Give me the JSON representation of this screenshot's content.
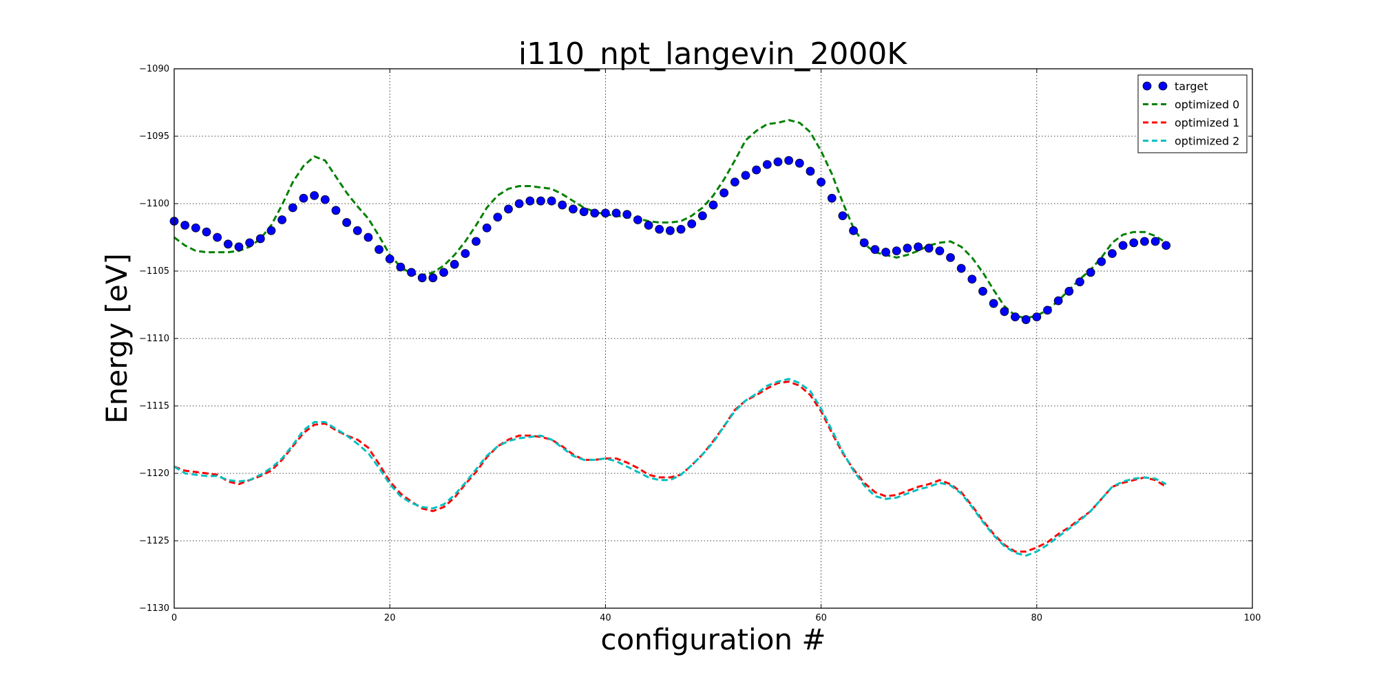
{
  "chart_data": {
    "type": "line",
    "title": "i110_npt_langevin_2000K",
    "xlabel": "configuration #",
    "ylabel": "Energy [eV]",
    "xlim": [
      0,
      100
    ],
    "ylim": [
      -1130,
      -1090
    ],
    "xticks": [
      0,
      20,
      40,
      60,
      80,
      100
    ],
    "yticks": [
      -1130,
      -1125,
      -1120,
      -1115,
      -1110,
      -1105,
      -1100,
      -1095,
      -1090
    ],
    "grid": true,
    "legend_position": "top-right",
    "series": [
      {
        "name": "target",
        "style": "markers",
        "color": "#0000ff",
        "values": [
          -1101.3,
          -1101.6,
          -1101.8,
          -1102.1,
          -1102.5,
          -1103.0,
          -1103.2,
          -1102.9,
          -1102.6,
          -1102.0,
          -1101.2,
          -1100.3,
          -1099.6,
          -1099.4,
          -1099.7,
          -1100.5,
          -1101.4,
          -1102.0,
          -1102.5,
          -1103.4,
          -1104.1,
          -1104.7,
          -1105.1,
          -1105.5,
          -1105.5,
          -1105.1,
          -1104.5,
          -1103.7,
          -1102.8,
          -1101.8,
          -1101.0,
          -1100.4,
          -1100.0,
          -1099.8,
          -1099.8,
          -1099.8,
          -1100.1,
          -1100.4,
          -1100.6,
          -1100.7,
          -1100.7,
          -1100.7,
          -1100.8,
          -1101.2,
          -1101.6,
          -1101.9,
          -1102.0,
          -1101.9,
          -1101.5,
          -1100.9,
          -1100.1,
          -1099.2,
          -1098.4,
          -1097.9,
          -1097.5,
          -1097.1,
          -1096.9,
          -1096.8,
          -1097.0,
          -1097.6,
          -1098.4,
          -1099.6,
          -1100.9,
          -1102.0,
          -1102.9,
          -1103.4,
          -1103.6,
          -1103.5,
          -1103.3,
          -1103.2,
          -1103.3,
          -1103.5,
          -1104.0,
          -1104.8,
          -1105.6,
          -1106.5,
          -1107.4,
          -1108.0,
          -1108.4,
          -1108.6,
          -1108.4,
          -1107.9,
          -1107.2,
          -1106.5,
          -1105.8,
          -1105.1,
          -1104.3,
          -1103.7,
          -1103.1,
          -1102.9,
          -1102.8,
          -1102.8,
          -1103.1
        ]
      },
      {
        "name": "optimized 0",
        "style": "dashed",
        "color": "#008000",
        "values": [
          -1102.5,
          -1103.1,
          -1103.5,
          -1103.6,
          -1103.6,
          -1103.6,
          -1103.5,
          -1103.2,
          -1102.6,
          -1101.6,
          -1100.1,
          -1098.4,
          -1097.2,
          -1096.5,
          -1096.8,
          -1098.0,
          -1099.2,
          -1100.2,
          -1101.1,
          -1102.4,
          -1103.8,
          -1104.7,
          -1105.2,
          -1105.3,
          -1105.1,
          -1104.6,
          -1103.8,
          -1102.8,
          -1101.6,
          -1100.3,
          -1099.4,
          -1098.9,
          -1098.7,
          -1098.7,
          -1098.8,
          -1098.9,
          -1099.3,
          -1099.8,
          -1100.3,
          -1100.6,
          -1100.8,
          -1100.9,
          -1101.0,
          -1101.1,
          -1101.3,
          -1101.4,
          -1101.4,
          -1101.3,
          -1100.9,
          -1100.3,
          -1099.4,
          -1098.2,
          -1096.8,
          -1095.3,
          -1094.6,
          -1094.1,
          -1094.0,
          -1093.8,
          -1094.0,
          -1094.7,
          -1096.1,
          -1097.8,
          -1099.9,
          -1101.8,
          -1103.0,
          -1103.6,
          -1103.8,
          -1104.0,
          -1103.8,
          -1103.5,
          -1103.1,
          -1102.9,
          -1102.8,
          -1103.2,
          -1104.0,
          -1105.1,
          -1106.4,
          -1107.6,
          -1108.3,
          -1108.5,
          -1108.3,
          -1107.9,
          -1107.2,
          -1106.4,
          -1105.6,
          -1104.9,
          -1104.0,
          -1102.9,
          -1102.3,
          -1102.1,
          -1102.1,
          -1102.4,
          -1102.9
        ]
      },
      {
        "name": "optimized 1",
        "style": "dashed",
        "color": "#ff0000",
        "values": [
          -1119.5,
          -1119.8,
          -1119.9,
          -1120.0,
          -1120.1,
          -1120.6,
          -1120.8,
          -1120.5,
          -1120.2,
          -1119.8,
          -1119.0,
          -1118.0,
          -1117.0,
          -1116.4,
          -1116.3,
          -1116.8,
          -1117.2,
          -1117.5,
          -1118.1,
          -1119.3,
          -1120.6,
          -1121.5,
          -1122.1,
          -1122.6,
          -1122.8,
          -1122.5,
          -1121.8,
          -1120.8,
          -1119.9,
          -1118.8,
          -1118.0,
          -1117.5,
          -1117.2,
          -1117.2,
          -1117.3,
          -1117.5,
          -1118.0,
          -1118.6,
          -1119.0,
          -1119.0,
          -1118.9,
          -1118.9,
          -1119.2,
          -1119.6,
          -1120.1,
          -1120.3,
          -1120.3,
          -1120.1,
          -1119.4,
          -1118.6,
          -1117.6,
          -1116.5,
          -1115.3,
          -1114.6,
          -1114.2,
          -1113.7,
          -1113.3,
          -1113.2,
          -1113.5,
          -1114.2,
          -1115.4,
          -1117.0,
          -1118.5,
          -1119.7,
          -1120.7,
          -1121.4,
          -1121.7,
          -1121.6,
          -1121.3,
          -1121.0,
          -1120.8,
          -1120.5,
          -1120.8,
          -1121.4,
          -1122.4,
          -1123.5,
          -1124.5,
          -1125.3,
          -1125.8,
          -1125.8,
          -1125.5,
          -1125.1,
          -1124.5,
          -1124.0,
          -1123.4,
          -1122.8,
          -1121.9,
          -1121.0,
          -1120.7,
          -1120.5,
          -1120.3,
          -1120.5,
          -1121.0
        ]
      },
      {
        "name": "optimized 2",
        "style": "dashed",
        "color": "#00bfbf",
        "values": [
          -1119.5,
          -1120.0,
          -1120.1,
          -1120.2,
          -1120.2,
          -1120.5,
          -1120.6,
          -1120.5,
          -1120.1,
          -1119.6,
          -1118.9,
          -1117.9,
          -1116.8,
          -1116.2,
          -1116.2,
          -1116.7,
          -1117.2,
          -1117.8,
          -1118.5,
          -1119.6,
          -1120.8,
          -1121.7,
          -1122.2,
          -1122.5,
          -1122.6,
          -1122.3,
          -1121.6,
          -1120.7,
          -1119.7,
          -1118.7,
          -1118.0,
          -1117.6,
          -1117.4,
          -1117.3,
          -1117.2,
          -1117.5,
          -1118.1,
          -1118.7,
          -1119.0,
          -1119.0,
          -1118.9,
          -1119.1,
          -1119.5,
          -1119.9,
          -1120.3,
          -1120.5,
          -1120.5,
          -1120.1,
          -1119.4,
          -1118.6,
          -1117.7,
          -1116.5,
          -1115.4,
          -1114.6,
          -1114.1,
          -1113.5,
          -1113.2,
          -1113.0,
          -1113.3,
          -1113.9,
          -1115.2,
          -1116.8,
          -1118.4,
          -1119.8,
          -1120.9,
          -1121.7,
          -1121.9,
          -1121.8,
          -1121.5,
          -1121.2,
          -1121.0,
          -1120.7,
          -1120.9,
          -1121.5,
          -1122.5,
          -1123.6,
          -1124.6,
          -1125.4,
          -1125.9,
          -1126.1,
          -1125.8,
          -1125.3,
          -1124.7,
          -1124.1,
          -1123.5,
          -1122.8,
          -1121.9,
          -1121.0,
          -1120.6,
          -1120.4,
          -1120.3,
          -1120.4,
          -1120.8
        ]
      }
    ]
  }
}
